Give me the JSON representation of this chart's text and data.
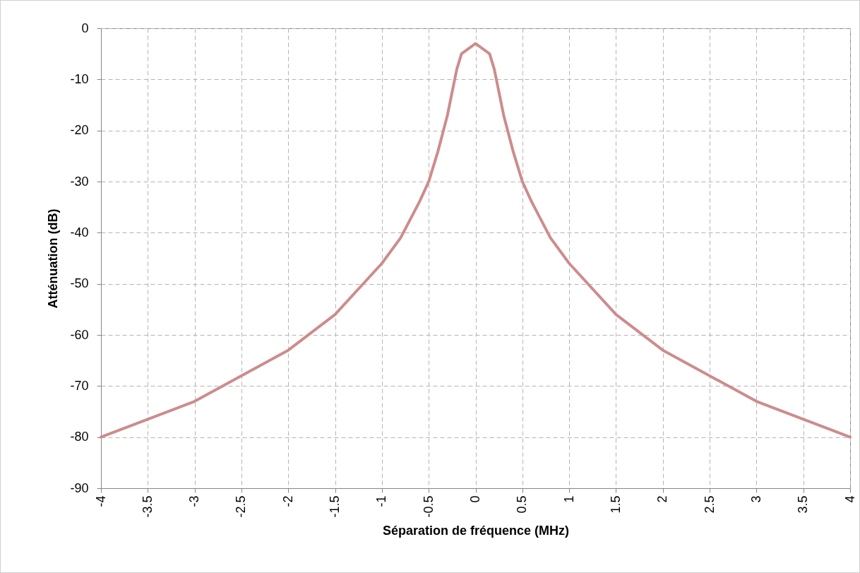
{
  "chart_data": {
    "type": "line",
    "xlabel": "Séparation de fréquence (MHz)",
    "ylabel": "Atténuation (dB)",
    "x": [
      -4,
      -3,
      -2,
      -1.5,
      -1,
      -0.8,
      -0.6,
      -0.5,
      -0.4,
      -0.3,
      -0.2,
      -0.15,
      0,
      0.15,
      0.2,
      0.3,
      0.4,
      0.5,
      0.6,
      0.8,
      1,
      1.5,
      2,
      3,
      4
    ],
    "series": [
      {
        "color": "#cd8c8c",
        "values": [
          -80,
          -73,
          -63,
          -56,
          -46,
          -41,
          -34,
          -30,
          -24,
          -17,
          -8,
          -5,
          -3,
          -5,
          -8,
          -17,
          -24,
          -30,
          -34,
          -41,
          -46,
          -56,
          -63,
          -73,
          -80
        ]
      }
    ],
    "xlim": [
      -4,
      4
    ],
    "xticks": [
      -4,
      -3.5,
      -3,
      -2.5,
      -2,
      -1.5,
      -1,
      -0.5,
      0,
      0.5,
      1,
      1.5,
      2,
      2.5,
      3,
      3.5,
      4
    ],
    "ylim": [
      -90,
      0
    ],
    "yticks": [
      -90,
      -80,
      -70,
      -60,
      -50,
      -40,
      -30,
      -20,
      -10,
      0
    ],
    "grid": true,
    "marker": "none",
    "line_style": "solid"
  }
}
